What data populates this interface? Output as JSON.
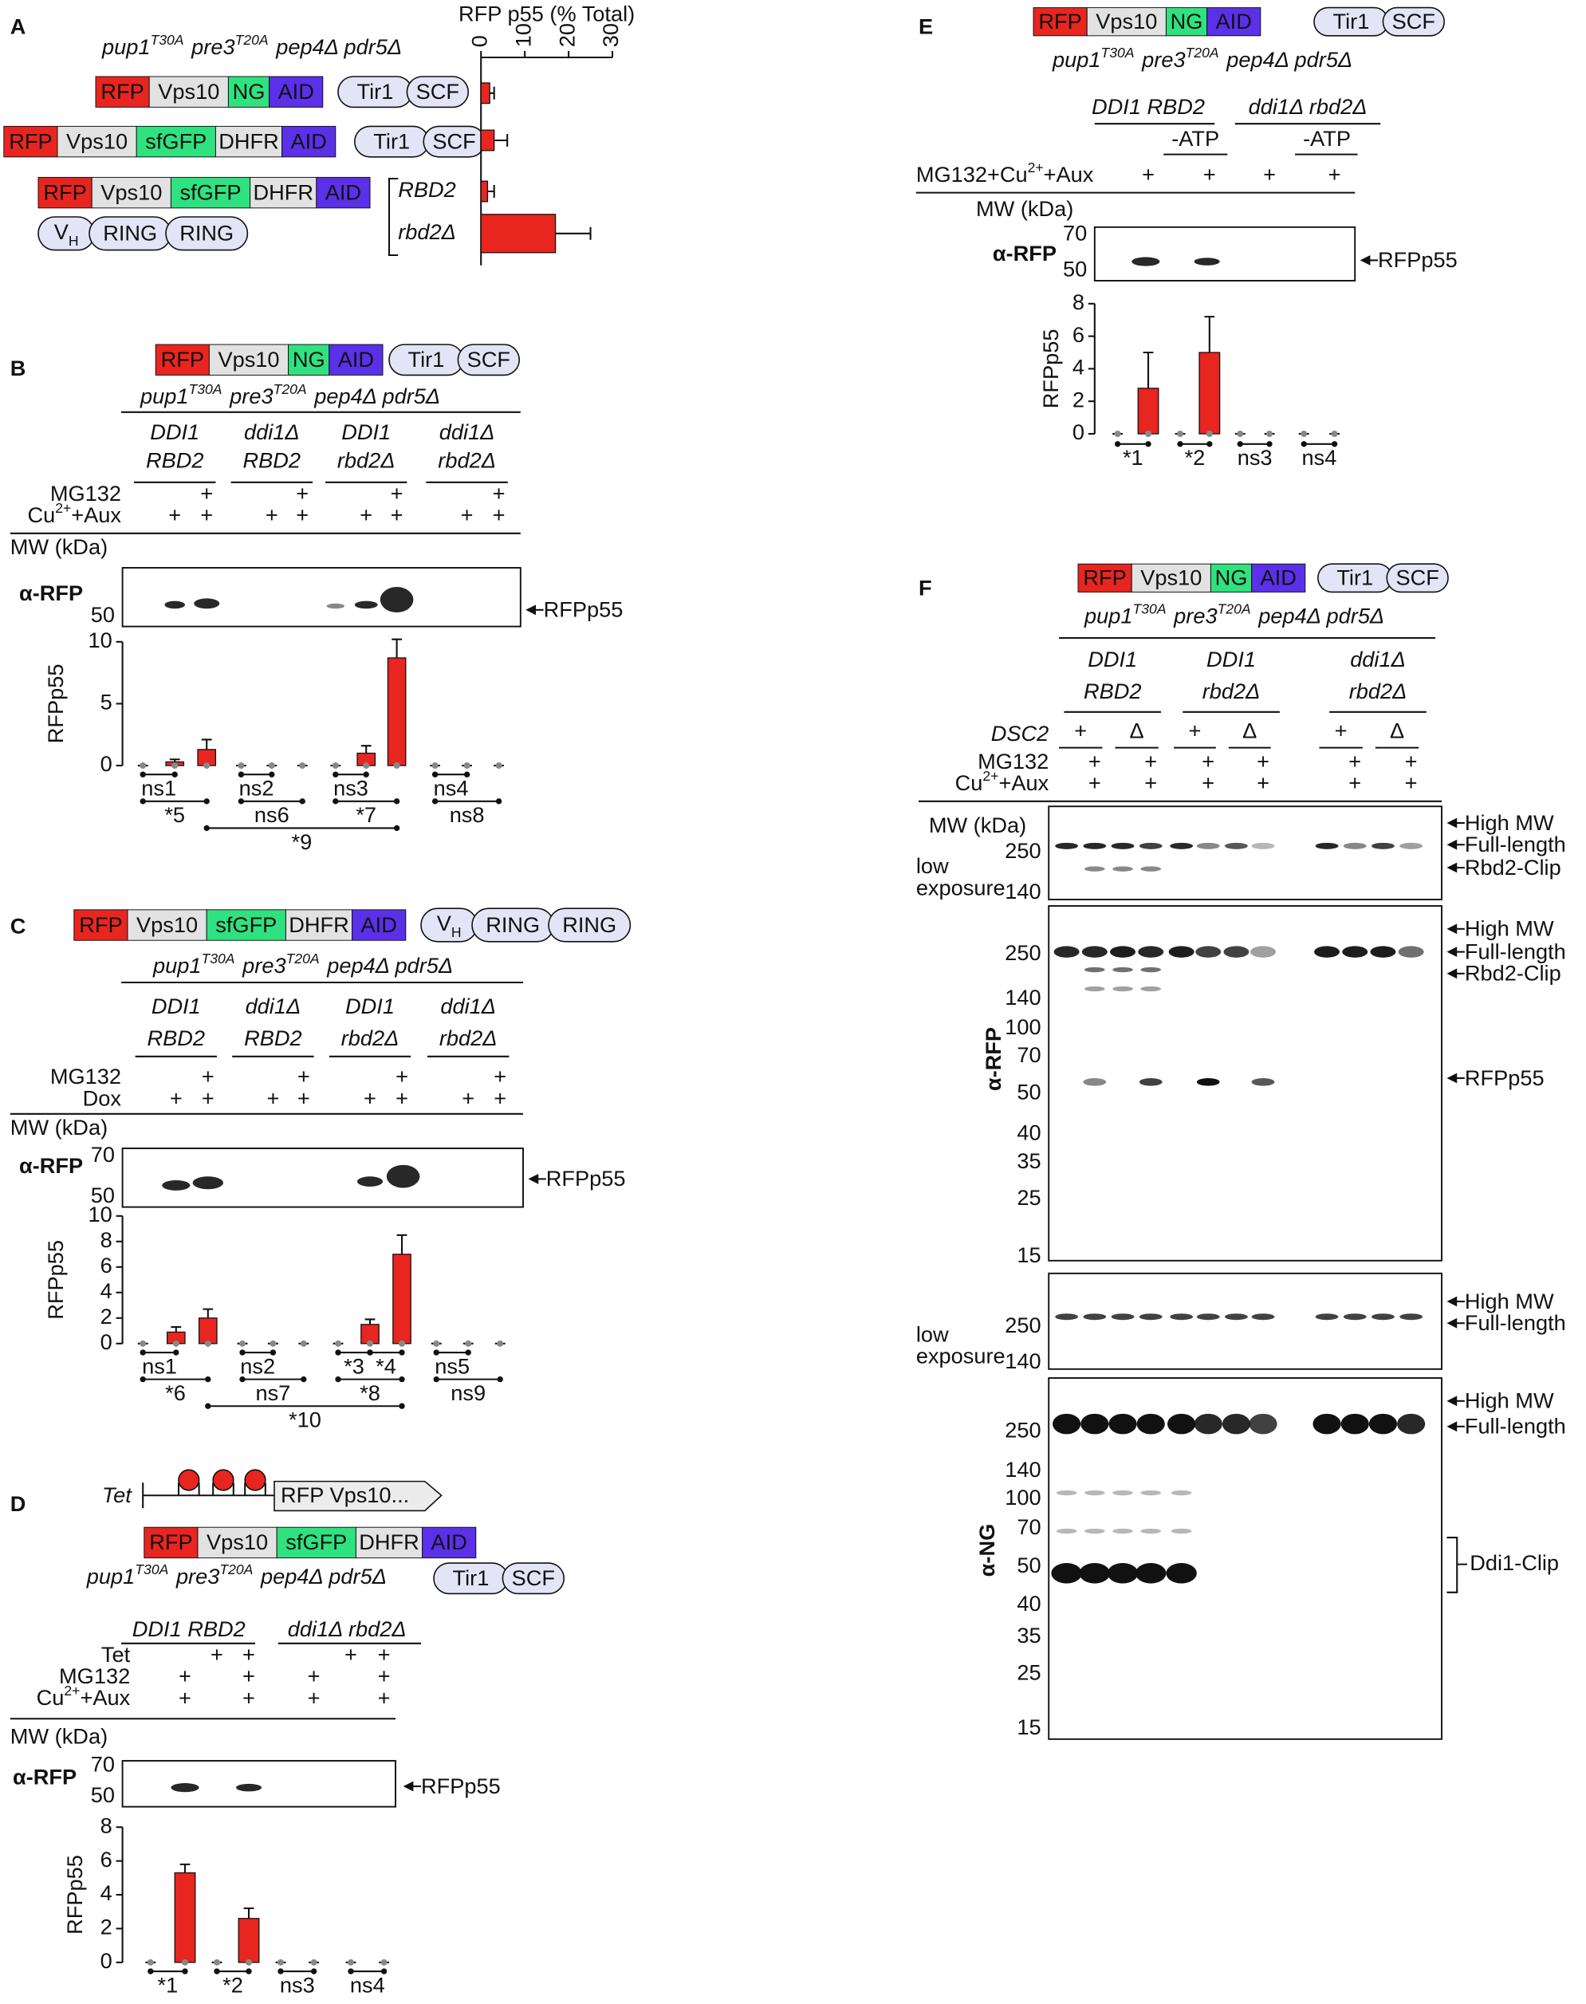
{
  "panel_labels": [
    "A",
    "B",
    "C",
    "D",
    "E",
    "F"
  ],
  "strain": [
    "pup1",
    "T30A",
    "pre3",
    "T20A",
    "pep4Δ pdr5Δ"
  ],
  "constructs": {
    "ng": [
      {
        "text": "RFP",
        "color": "#e8251f",
        "text_color": "#ffffff"
      },
      {
        "text": "Vps10",
        "color": "#e2e2e2",
        "text_color": "#222222"
      },
      {
        "text": "NG",
        "color": "#2fe27f",
        "text_color": "#222222"
      },
      {
        "text": "AID",
        "color": "#5a30e8",
        "text_color": "#ffffff"
      }
    ],
    "sfgfp": [
      {
        "text": "RFP",
        "color": "#e8251f",
        "text_color": "#ffffff"
      },
      {
        "text": "Vps10",
        "color": "#e2e2e2",
        "text_color": "#222222"
      },
      {
        "text": "sfGFP",
        "color": "#2fe27f",
        "text_color": "#222222"
      },
      {
        "text": "DHFR",
        "color": "#e2e2e2",
        "text_color": "#222222"
      },
      {
        "text": "AID",
        "color": "#5a30e8",
        "text_color": "#ffffff"
      }
    ],
    "ligase": {
      "parts": [
        "Tir1",
        "SCF"
      ],
      "color": "#e4e4f7"
    },
    "ring": {
      "parts": [
        "V",
        "H",
        "RING",
        "RING"
      ],
      "color": "#e4e4f7"
    },
    "tet": {
      "promoter": "Tet",
      "gene": "RFP Vps10...",
      "hairpin_color": "#e8251f"
    }
  },
  "genotypes": [
    "DDI1",
    "RBD2",
    "ddi1Δ",
    "rbd2Δ",
    "DDI1 RBD2",
    "ddi1Δ rbd2Δ"
  ],
  "treatments": {
    "mg132": "MG132",
    "cu": [
      "Cu",
      "2+",
      "+Aux"
    ],
    "dox": "Dox",
    "tet": "Tet",
    "mg132_cu": [
      "MG132+Cu",
      "2+",
      "+Aux"
    ],
    "atp": "-ATP",
    "dsc2": "DSC2",
    "plus": "+",
    "delta": "Δ"
  },
  "blot": {
    "mw_title": "MW (kDa)",
    "anti_rfp": "α-RFP",
    "anti_ng": "α-NG",
    "low_exposure": [
      "low",
      "exposure"
    ],
    "bands": [
      "RFPp55",
      "High MW",
      "Full-length",
      "Rbd2-Clip",
      "Ddi1-Clip"
    ],
    "mw": [
      "250",
      "140",
      "100",
      "70",
      "50",
      "40",
      "35",
      "25",
      "15"
    ],
    "rfp_color": "#e8251f",
    "ng_color": "#2e8b2e"
  },
  "chart_data": [
    {
      "type": "hbar",
      "title": "RFP p55 (% Total)",
      "categories": [
        null,
        null,
        "RBD2",
        "rbd2Δ"
      ],
      "values": [
        2,
        3,
        1.5,
        17
      ],
      "errors": [
        1,
        3,
        1.5,
        8
      ],
      "color": "#e8251f",
      "xlim": [
        0,
        30
      ],
      "xticks": [
        0,
        10,
        20,
        30
      ]
    },
    {
      "type": "bar",
      "y_label": "RFPp55",
      "values": [
        0,
        0.3,
        1.3,
        0,
        0,
        0,
        0,
        1.0,
        8.7,
        0,
        0,
        0
      ],
      "errors": [
        0,
        0.2,
        0.8,
        0,
        0,
        0,
        0,
        0.6,
        1.5,
        0,
        0,
        0
      ],
      "color": "#e8251f",
      "ylim": [
        0,
        10
      ],
      "yticks": [
        0,
        5,
        10
      ],
      "annotations": [
        "ns1",
        "*5",
        "ns2",
        "ns6",
        "ns3",
        "*7",
        "ns4",
        "ns8",
        "*9"
      ]
    },
    {
      "type": "bar",
      "y_label": "RFPp55",
      "values": [
        0,
        0.9,
        2.0,
        0,
        0,
        0,
        0,
        1.5,
        7.0,
        0,
        0,
        0
      ],
      "errors": [
        0,
        0.4,
        0.7,
        0,
        0,
        0,
        0,
        0.4,
        1.5,
        0,
        0,
        0
      ],
      "color": "#e8251f",
      "ylim": [
        0,
        10
      ],
      "yticks": [
        0,
        2,
        4,
        6,
        8,
        10
      ],
      "annotations": [
        "ns1",
        "*6",
        "ns2",
        "ns7",
        "*3",
        "*4",
        "*8",
        "ns5",
        "ns9",
        "*10"
      ]
    },
    {
      "type": "bar",
      "y_label": "RFPp55",
      "values": [
        0,
        5.3,
        0,
        2.6,
        0,
        0,
        0,
        0
      ],
      "errors": [
        0,
        0.5,
        0,
        0.6,
        0,
        0,
        0,
        0
      ],
      "color": "#e8251f",
      "ylim": [
        0,
        8
      ],
      "yticks": [
        0,
        2,
        4,
        6,
        8
      ],
      "annotations": [
        "*1",
        "*2",
        "ns3",
        "ns4"
      ]
    },
    {
      "type": "bar",
      "y_label": "RFPp55",
      "values": [
        0,
        2.8,
        0,
        5.0,
        0,
        0,
        0,
        0
      ],
      "errors": [
        0,
        2.2,
        0,
        2.2,
        0,
        0,
        0,
        0
      ],
      "color": "#e8251f",
      "ylim": [
        0,
        8
      ],
      "yticks": [
        0,
        2,
        4,
        6,
        8
      ],
      "annotations": [
        "*1",
        "*2",
        "ns3",
        "ns4"
      ]
    }
  ]
}
